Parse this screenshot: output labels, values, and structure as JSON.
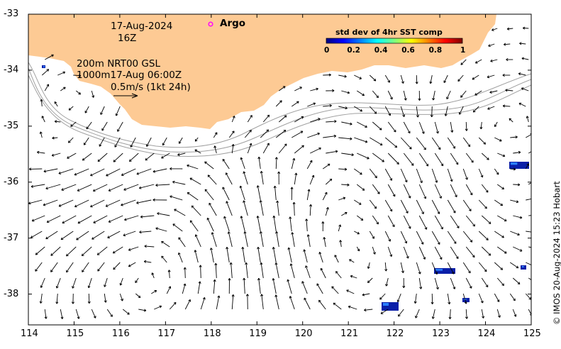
{
  "map": {
    "lon_ticks": [
      "114",
      "115",
      "116",
      "117",
      "118",
      "119",
      "120",
      "121",
      "122",
      "123",
      "124",
      "125"
    ],
    "lat_ticks": [
      "-33",
      "-34",
      "-35",
      "-36",
      "-37",
      "-38"
    ],
    "lon_range": [
      114,
      125
    ],
    "lat_range": [
      -38.55,
      -33.0
    ],
    "land_color": "#fdca94",
    "contour_color": "#a0a0a0"
  },
  "annotations": {
    "date": "17-Aug-2024",
    "hour": "16Z",
    "line1": "200m  NRT00 GSL",
    "line2": "1000m17-Aug 06:00Z",
    "scale_label": "0.5m/s (1kt 24h)",
    "argo_label": "Argo",
    "argo_color": "#ff00ff"
  },
  "colorbar": {
    "title": "std dev of 4hr SST comp",
    "ticks": [
      "0",
      "0.2",
      "0.4",
      "0.6",
      "0.8",
      "1"
    ],
    "colors": [
      "#00007f",
      "#0000ff",
      "#007fff",
      "#00ffff",
      "#7fff7f",
      "#ffff00",
      "#ff7f00",
      "#ff0000",
      "#7f0000"
    ]
  },
  "credit": "© IMOS 20-Aug-2024 15:23 Hobart"
}
